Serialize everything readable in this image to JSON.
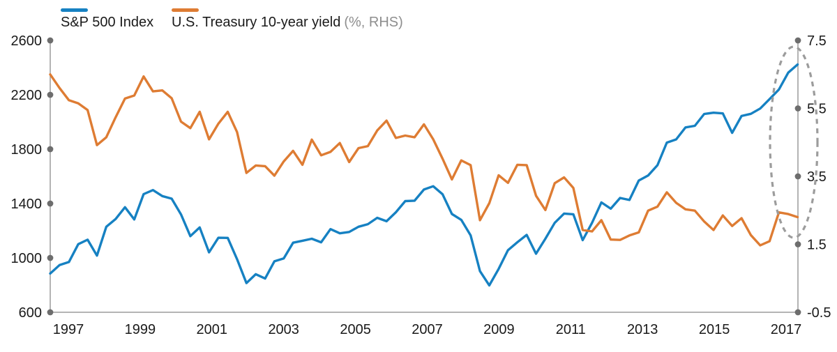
{
  "legend": {
    "sp500": {
      "label": "S&P 500 Index",
      "color": "#1681c2"
    },
    "treasury": {
      "label": "U.S. Treasury 10-year yield",
      "suffix": "(%, RHS)",
      "color": "#de7c33"
    }
  },
  "colors": {
    "sp500_line": "#1681c2",
    "treasury_line": "#de7c33",
    "axis_line": "#9b9b9b",
    "tick_dot": "#6d6d6d",
    "tick_label": "#1a1a1a",
    "annotation_ellipse": "#9c9c9c",
    "legend_suffix_gray": "#8e8e8e"
  },
  "chart_data": {
    "type": "line",
    "title": "",
    "frequency": "quarterly",
    "x_start": "1997-Q2",
    "x_end": "2017-Q2",
    "x_tick_labels": [
      "1997",
      "1999",
      "2001",
      "2003",
      "2005",
      "2007",
      "2009",
      "2011",
      "2013",
      "2015",
      "2017"
    ],
    "left_axis": {
      "series": "S&P 500 Index",
      "ticks": [
        2600,
        2200,
        1800,
        1400,
        1000,
        600
      ],
      "range": [
        600,
        2600
      ]
    },
    "right_axis": {
      "series": "U.S. Treasury 10-year yield (%, RHS)",
      "ticks": [
        7.5,
        5.5,
        3.5,
        1.5,
        -0.5
      ],
      "range": [
        -0.5,
        7.5
      ]
    },
    "legend_position": "top-left",
    "grid": false,
    "series": [
      {
        "name": "S&P 500 Index",
        "axis": "left",
        "color": "#1681c2",
        "values": [
          885,
          947,
          970,
          1101,
          1134,
          1017,
          1229,
          1286,
          1373,
          1283,
          1469,
          1499,
          1455,
          1436,
          1320,
          1160,
          1224,
          1041,
          1148,
          1147,
          990,
          815,
          880,
          848,
          975,
          996,
          1112,
          1126,
          1141,
          1115,
          1212,
          1181,
          1191,
          1229,
          1248,
          1295,
          1270,
          1336,
          1418,
          1421,
          1503,
          1527,
          1468,
          1323,
          1280,
          1166,
          903,
          798,
          919,
          1057,
          1115,
          1169,
          1031,
          1141,
          1258,
          1326,
          1321,
          1131,
          1258,
          1408,
          1362,
          1441,
          1426,
          1569,
          1606,
          1682,
          1848,
          1872,
          1960,
          1972,
          2059,
          2068,
          2063,
          1920,
          2044,
          2060,
          2099,
          2168,
          2239,
          2363,
          2423
        ]
      },
      {
        "name": "U.S. Treasury 10-year yield (%, RHS)",
        "axis": "right",
        "color": "#de7c33",
        "values": [
          6.5,
          6.1,
          5.74,
          5.65,
          5.45,
          4.42,
          4.65,
          5.24,
          5.79,
          5.88,
          6.44,
          6.0,
          6.03,
          5.8,
          5.11,
          4.92,
          5.4,
          4.59,
          5.05,
          5.4,
          4.8,
          3.6,
          3.82,
          3.8,
          3.52,
          3.94,
          4.25,
          3.84,
          4.58,
          4.12,
          4.22,
          4.48,
          3.92,
          4.33,
          4.39,
          4.85,
          5.14,
          4.63,
          4.7,
          4.65,
          5.03,
          4.59,
          4.02,
          3.41,
          3.97,
          3.83,
          2.21,
          2.71,
          3.53,
          3.31,
          3.84,
          3.83,
          2.93,
          2.51,
          3.3,
          3.47,
          3.16,
          1.92,
          1.88,
          2.21,
          1.64,
          1.63,
          1.76,
          1.85,
          2.49,
          2.61,
          3.03,
          2.72,
          2.53,
          2.49,
          2.17,
          1.92,
          2.35,
          2.04,
          2.27,
          1.77,
          1.47,
          1.59,
          2.44,
          2.39,
          2.3
        ]
      }
    ],
    "annotation": {
      "type": "dashed-ellipse",
      "color": "#9c9c9c",
      "note": "circles the diverging right-hand ends of the two lines"
    }
  }
}
